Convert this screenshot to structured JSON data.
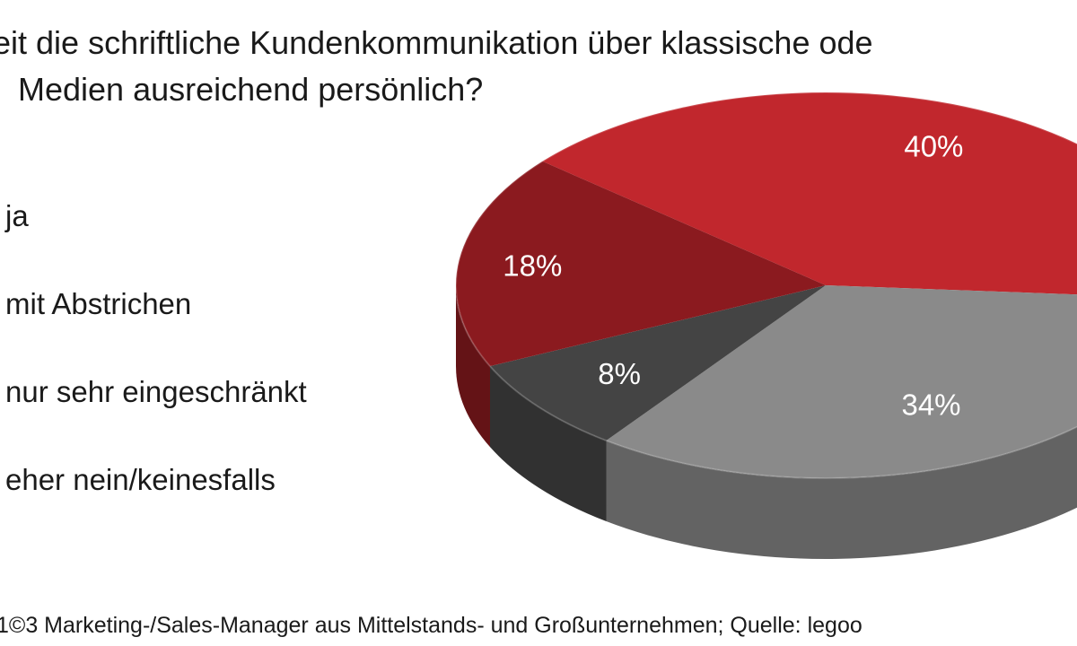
{
  "chart_data": {
    "type": "pie",
    "title_lines": [
      "eit die schriftliche Kundenkommunikation über klassische ode",
      "Medien ausreichend persönlich?"
    ],
    "categories": [
      "ja",
      "mit Abstrichen",
      "nur sehr eingeschränkt",
      "eher nein/keinesfalls"
    ],
    "values": [
      40,
      34,
      8,
      18
    ],
    "labels": [
      "40%",
      "34%",
      "8%",
      "18%"
    ],
    "colors": [
      "#c1272d",
      "#8a8a8a",
      "#444444",
      "#8b1a1f"
    ],
    "footer": "1©3 Marketing-/Sales-Manager aus Mittelstands- und Großunternehmen; Quelle: legoo"
  }
}
